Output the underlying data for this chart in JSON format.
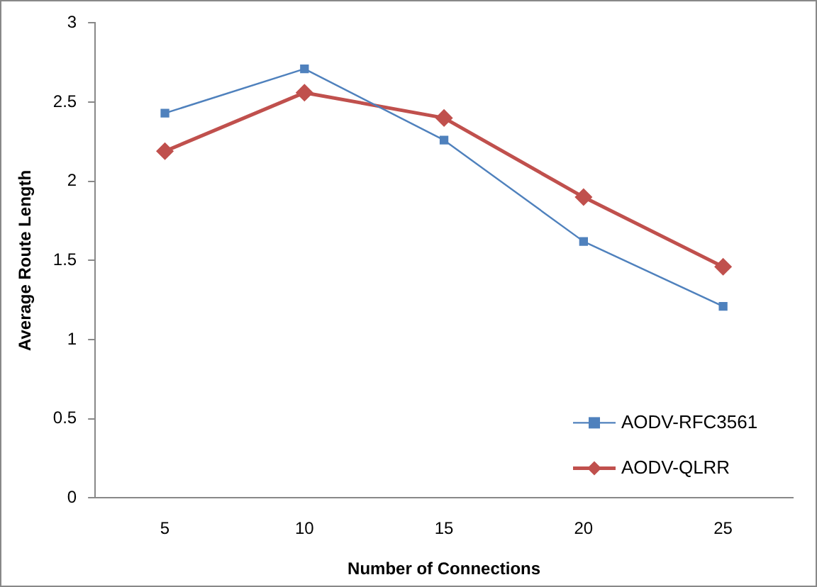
{
  "chart_data": {
    "type": "line",
    "xlabel": "Number of Connections",
    "ylabel": "Average Route Length",
    "categories": [
      "5",
      "10",
      "15",
      "20",
      "25"
    ],
    "series": [
      {
        "name": "AODV-RFC3561",
        "color": "#4f81bd",
        "values": [
          2.43,
          2.71,
          2.26,
          1.62,
          1.21
        ],
        "marker": "square"
      },
      {
        "name": "AODV-QLRR",
        "color": "#c0504d",
        "values": [
          2.19,
          2.56,
          2.4,
          1.9,
          1.46
        ],
        "marker": "diamond"
      }
    ],
    "ylim": [
      0,
      3
    ],
    "yticks": [
      0,
      0.5,
      1,
      1.5,
      2,
      2.5,
      3
    ],
    "grid": false,
    "legend": "bottom right"
  }
}
